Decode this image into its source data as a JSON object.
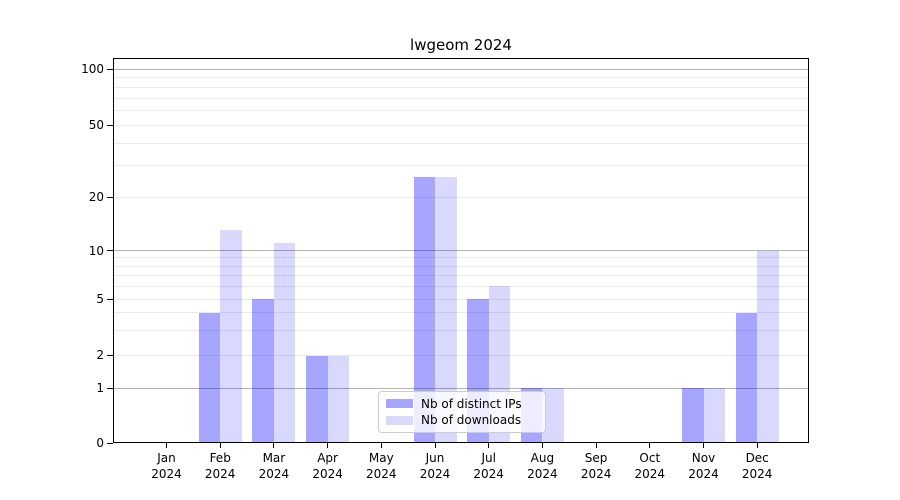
{
  "title": "lwgeom 2024",
  "legend": {
    "items": [
      {
        "label": "Nb of distinct IPs"
      },
      {
        "label": "Nb of downloads"
      }
    ]
  },
  "colors": {
    "bar_distinct_ips": "rgba(0,0,255,0.35)",
    "bar_downloads": "rgba(0,0,255,0.15)",
    "grid_major": "#b3b3b3",
    "grid_minor": "#eaeaea"
  },
  "chart_data": {
    "type": "bar",
    "title": "lwgeom 2024",
    "categories": [
      "Jan",
      "Feb",
      "Mar",
      "Apr",
      "May",
      "Jun",
      "Jul",
      "Aug",
      "Sep",
      "Oct",
      "Nov",
      "Dec"
    ],
    "category_year": "2024",
    "series": [
      {
        "name": "Nb of distinct IPs",
        "color": "rgba(0,0,255,0.35)",
        "values": [
          0,
          4,
          5,
          2,
          0,
          26,
          5,
          1,
          0,
          0,
          1,
          4
        ]
      },
      {
        "name": "Nb of downloads",
        "color": "rgba(0,0,255,0.15)",
        "values": [
          0,
          13,
          11,
          2,
          0,
          26,
          6,
          1,
          0,
          0,
          1,
          10
        ]
      }
    ],
    "yscale": "symlog",
    "ylim": [
      0,
      110
    ],
    "yticks": [
      0,
      1,
      2,
      5,
      10,
      20,
      50,
      100
    ],
    "yticks_major_grid": [
      1,
      10,
      100
    ],
    "yticks_minor": [
      3,
      4,
      6,
      7,
      8,
      9,
      30,
      40,
      60,
      70,
      80,
      90
    ],
    "grid": true,
    "legend_position": "lower center"
  }
}
